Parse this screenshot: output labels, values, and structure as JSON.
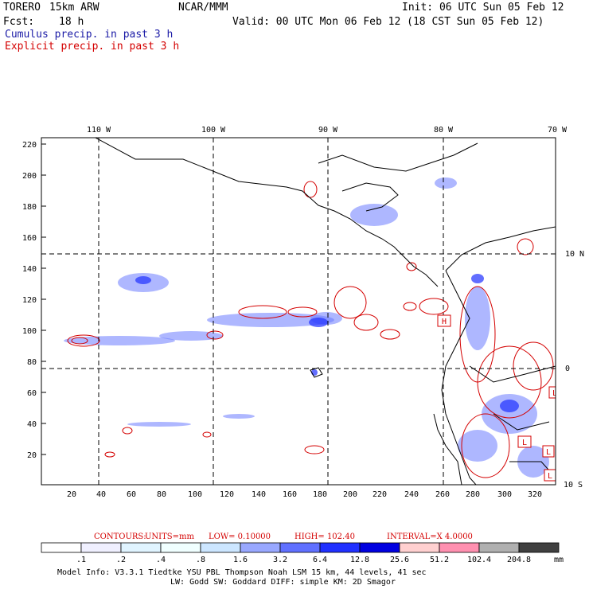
{
  "header": {
    "model": "TORERO",
    "resolution": "15km ARW",
    "org": "NCAR/MMM",
    "init": "Init: 06 UTC Sun 05 Feb 12",
    "fcst_label": "Fcst:",
    "fcst_value": "18 h",
    "valid": "Valid: 00 UTC Mon 06 Feb 12 (18 CST Sun 05 Feb 12)",
    "cumulus_title": "Cumulus precip. in past 3 h",
    "explicit_title": "Explicit precip. in past 3 h"
  },
  "map": {
    "lon_labels": [
      "110 W",
      "100 W",
      "90 W",
      "80 W",
      "70 W"
    ],
    "lat_labels": [
      "10 N",
      "0",
      "10 S"
    ],
    "y_ticks": [
      "220",
      "200",
      "180",
      "160",
      "140",
      "120",
      "100",
      "80",
      "60",
      "40",
      "20"
    ],
    "x_ticks": [
      "20",
      "40",
      "60",
      "80",
      "100",
      "120",
      "140",
      "160",
      "180",
      "200",
      "220",
      "240",
      "260",
      "280",
      "300",
      "320"
    ],
    "boxes": [
      "H",
      "L",
      "L",
      "L",
      "L"
    ]
  },
  "contour_info": {
    "label": "CONTOURS:",
    "units": "UNITS=mm",
    "low": "LOW= 0.10000",
    "high": "HIGH= 102.40",
    "interval": "INTERVAL=X 4.0000"
  },
  "colorbar": {
    "labels": [
      ".1",
      ".2",
      ".4",
      ".8",
      "1.6",
      "3.2",
      "6.4",
      "12.8",
      "25.6",
      "51.2",
      "102.4",
      "204.8"
    ],
    "unit": "mm",
    "colors": [
      "#ffffff",
      "#f0f0ff",
      "#e0f4ff",
      "#f0ffff",
      "#cce6ff",
      "#99a8ff",
      "#6070ff",
      "#2030ff",
      "#0000e0",
      "#ffd0d0",
      "#ff90b0",
      "#b0b0b0",
      "#404040",
      "#d8a8ff"
    ]
  },
  "footer": {
    "line1": "Model Info: V3.3.1   Tiedtke YSU PBL  Thompson    Noah LSM  15 km,  44 levels,  41 sec",
    "line2": "LW: Godd SW: Goddard DIFF: simple KM: 2D Smagor"
  }
}
